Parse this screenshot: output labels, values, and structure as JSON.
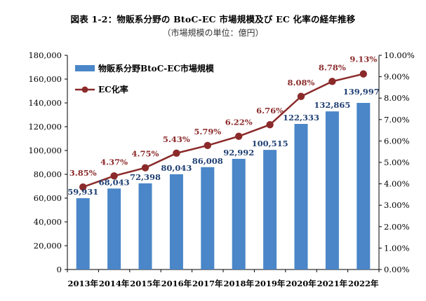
{
  "chart_data": {
    "type": "bar+line",
    "title": "図表 1-2：物販系分野の BtoC-EC 市場規模及び EC 化率の経年推移",
    "subtitle": "（市場規模の単位：億円）",
    "categories": [
      "2013年",
      "2014年",
      "2015年",
      "2016年",
      "2017年",
      "2018年",
      "2019年",
      "2020年",
      "2021年",
      "2022年"
    ],
    "series": [
      {
        "name": "物販系分野BtoC-EC市場規模",
        "type": "bar",
        "axis": "left",
        "color": "#4a86c8",
        "values": [
          59931,
          68043,
          72398,
          80043,
          86008,
          92992,
          100515,
          122333,
          132865,
          139997
        ],
        "labels": [
          "59,931",
          "68,043",
          "72,398",
          "80,043",
          "86,008",
          "92,992",
          "100,515",
          "122,333",
          "132,865",
          "139,997"
        ]
      },
      {
        "name": "EC化率",
        "type": "line",
        "axis": "right",
        "color": "#8b2a2a",
        "values": [
          3.85,
          4.37,
          4.75,
          5.43,
          5.79,
          6.22,
          6.76,
          8.08,
          8.78,
          9.13
        ],
        "labels": [
          "3.85%",
          "4.37%",
          "4.75%",
          "5.43%",
          "5.79%",
          "6.22%",
          "6.76%",
          "8.08%",
          "8.78%",
          "9.13%"
        ]
      }
    ],
    "y_left": {
      "min": 0,
      "max": 180000,
      "ticks": [
        0,
        20000,
        40000,
        60000,
        80000,
        100000,
        120000,
        140000,
        160000,
        180000
      ],
      "tick_labels": [
        "0",
        "20,000",
        "40,000",
        "60,000",
        "80,000",
        "100,000",
        "120,000",
        "140,000",
        "160,000",
        "180,000"
      ]
    },
    "y_right": {
      "min": 0,
      "max": 10,
      "ticks": [
        0,
        1,
        2,
        3,
        4,
        5,
        6,
        7,
        8,
        9,
        10
      ],
      "tick_labels": [
        "0.00%",
        "1.00%",
        "2.00%",
        "3.00%",
        "4.00%",
        "5.00%",
        "6.00%",
        "7.00%",
        "8.00%",
        "9.00%",
        "10.00%"
      ]
    },
    "legend": "top-left",
    "grid": false
  }
}
